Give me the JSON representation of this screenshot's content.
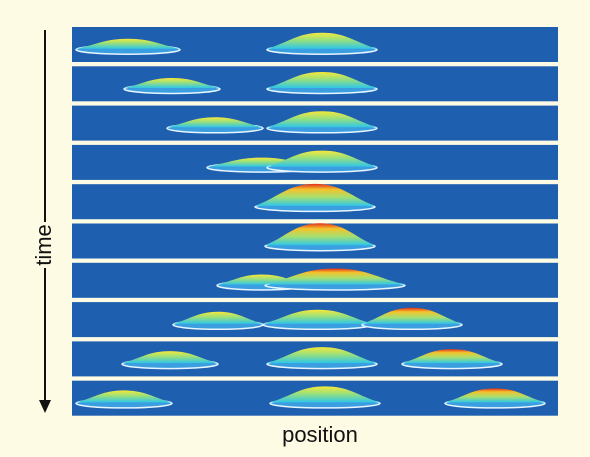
{
  "axes": {
    "y_label": "time",
    "x_label": "position"
  }
}
